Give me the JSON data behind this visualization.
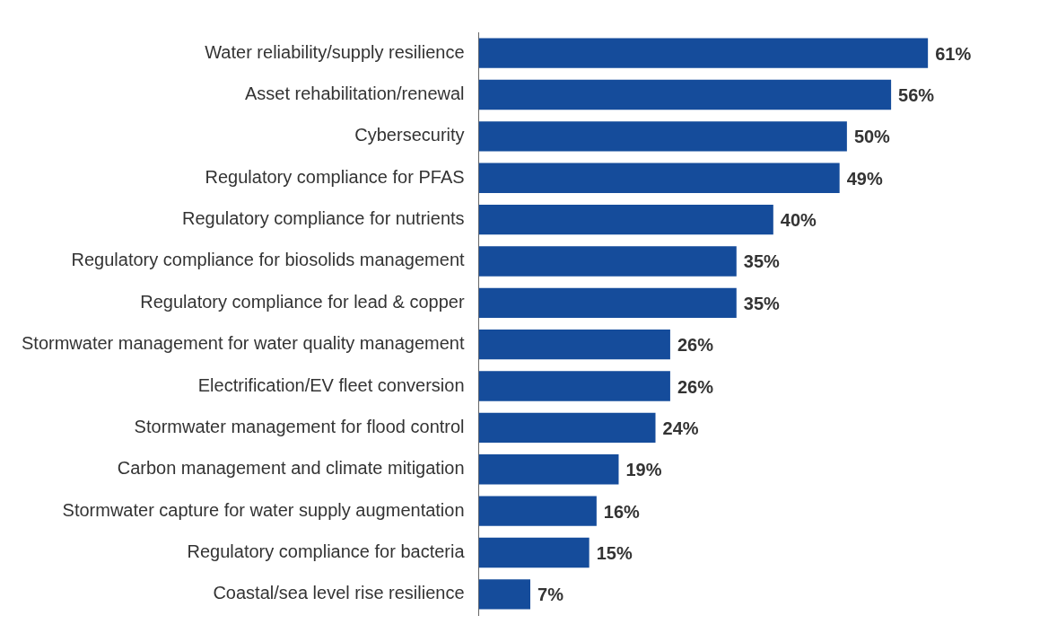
{
  "chart_data": {
    "type": "bar",
    "orientation": "horizontal",
    "categories": [
      "Water reliability/supply resilience",
      "Asset rehabilitation/renewal",
      "Cybersecurity",
      "Regulatory compliance for PFAS",
      "Regulatory compliance for nutrients",
      "Regulatory compliance for biosolids management",
      "Regulatory compliance for lead & copper",
      "Stormwater management for water quality management",
      "Electrification/EV fleet conversion",
      "Stormwater management for flood control",
      "Carbon management and climate mitigation",
      "Stormwater capture for water supply augmentation",
      "Regulatory compliance for bacteria",
      "Coastal/sea level rise resilience"
    ],
    "values": [
      61,
      56,
      50,
      49,
      40,
      35,
      35,
      26,
      26,
      24,
      19,
      16,
      15,
      7
    ],
    "value_labels": [
      "61%",
      "56%",
      "50%",
      "49%",
      "40%",
      "35%",
      "35%",
      "26%",
      "26%",
      "24%",
      "19%",
      "16%",
      "15%",
      "7%"
    ],
    "color": "#154c9b",
    "legend": false
  }
}
